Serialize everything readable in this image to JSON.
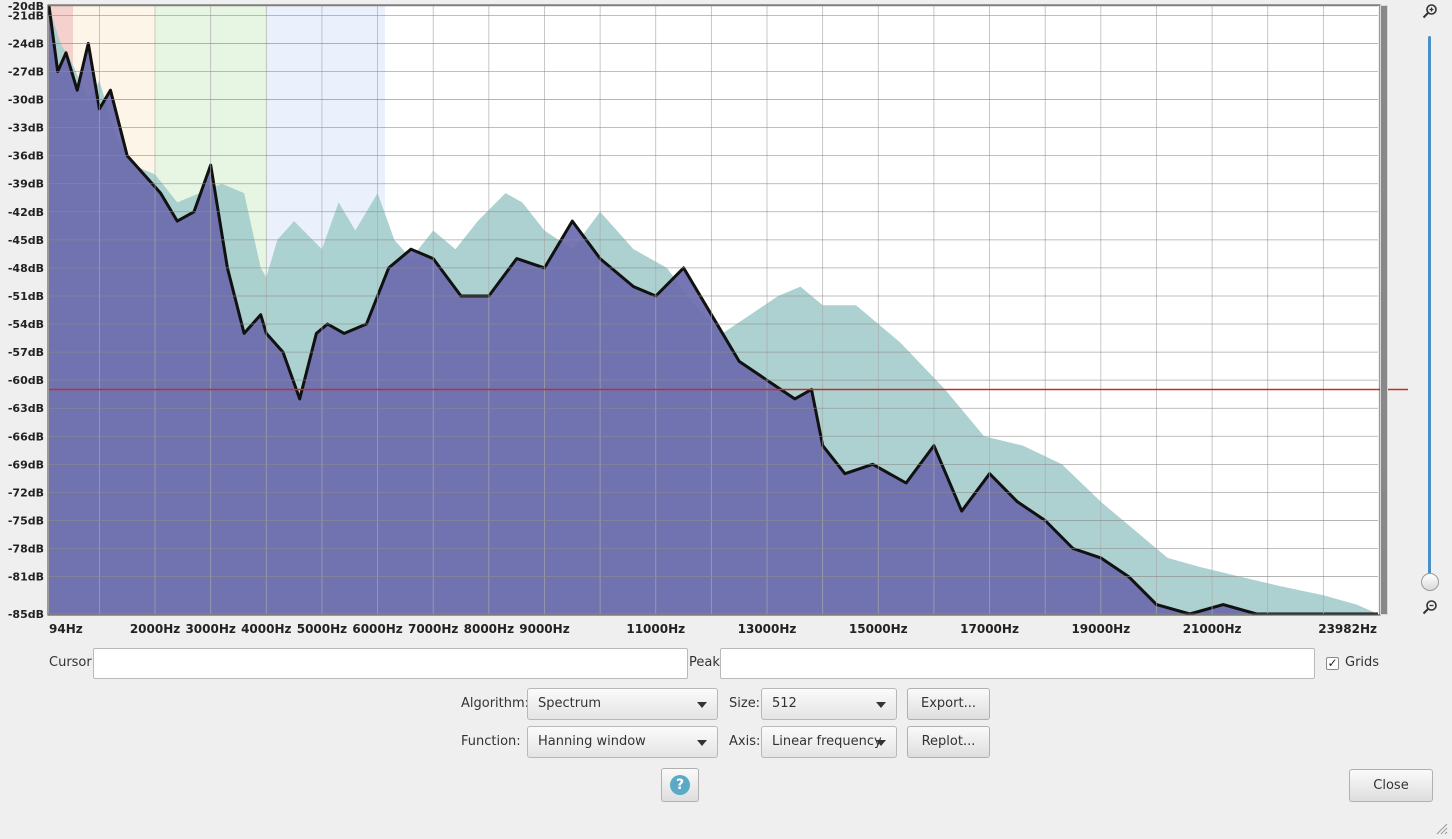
{
  "chart_data": {
    "type": "area",
    "title": "",
    "xlabel": "",
    "ylabel": "",
    "x_ticks": [
      "94Hz",
      "2000Hz",
      "3000Hz",
      "4000Hz",
      "5000Hz",
      "6000Hz",
      "7000Hz",
      "8000Hz",
      "9000Hz",
      "11000Hz",
      "13000Hz",
      "15000Hz",
      "17000Hz",
      "19000Hz",
      "21000Hz",
      "23982Hz"
    ],
    "x_tick_values": [
      94,
      2000,
      3000,
      4000,
      5000,
      6000,
      7000,
      8000,
      9000,
      11000,
      13000,
      15000,
      17000,
      19000,
      21000,
      23982
    ],
    "y_ticks": [
      "-20dB",
      "-21dB",
      "-24dB",
      "-27dB",
      "-30dB",
      "-33dB",
      "-36dB",
      "-39dB",
      "-42dB",
      "-45dB",
      "-48dB",
      "-51dB",
      "-54dB",
      "-57dB",
      "-60dB",
      "-63dB",
      "-66dB",
      "-69dB",
      "-72dB",
      "-75dB",
      "-78dB",
      "-81dB",
      "-85dB"
    ],
    "y_tick_values": [
      -20,
      -21,
      -24,
      -27,
      -30,
      -33,
      -36,
      -39,
      -42,
      -45,
      -48,
      -51,
      -54,
      -57,
      -60,
      -63,
      -66,
      -69,
      -72,
      -75,
      -78,
      -81,
      -85
    ],
    "xlim": [
      94,
      23982
    ],
    "ylim": [
      -85,
      -20
    ],
    "grid": true,
    "threshold_db": -61,
    "series": [
      {
        "color": "#a8cfcd",
        "x": [
          94,
          300,
          500,
          800,
          1000,
          1300,
          1600,
          2000,
          2400,
          2800,
          3200,
          3600,
          3900,
          4000,
          4200,
          4500,
          5000,
          5300,
          5600,
          6000,
          6300,
          6600,
          7000,
          7400,
          7800,
          8300,
          8600,
          9000,
          9500,
          10000,
          10600,
          11200,
          11700,
          12200,
          12700,
          13200,
          13600,
          14000,
          14600,
          15400,
          16200,
          16900,
          17600,
          18300,
          19000,
          19600,
          20200,
          20800,
          21500,
          22200,
          23000,
          23600,
          23982
        ],
        "y": [
          -20,
          -24,
          -26,
          -30,
          -28,
          -34,
          -37,
          -38,
          -41,
          -40,
          -39,
          -40,
          -48,
          -49,
          -45,
          -43,
          -46,
          -41,
          -44,
          -40,
          -45,
          -47,
          -44,
          -46,
          -43,
          -40,
          -41,
          -44,
          -46,
          -42,
          -46,
          -48,
          -52,
          -55,
          -53,
          -51,
          -50,
          -52,
          -52,
          -56,
          -61,
          -66,
          -67,
          -69,
          -73,
          -76,
          -79,
          -80,
          -81,
          -82,
          -83,
          -84,
          -85
        ]
      },
      {
        "color": "#6b6aae",
        "x": [
          94,
          250,
          400,
          600,
          800,
          1000,
          1200,
          1500,
          1800,
          2100,
          2400,
          2700,
          3000,
          3300,
          3600,
          3900,
          4000,
          4300,
          4600,
          4900,
          5100,
          5400,
          5800,
          6200,
          6600,
          7000,
          7500,
          8000,
          8500,
          9000,
          9500,
          10000,
          10600,
          11000,
          11500,
          12000,
          12500,
          13000,
          13500,
          13800,
          14000,
          14400,
          14900,
          15500,
          16000,
          16500,
          17000,
          17500,
          18000,
          18500,
          19000,
          19500,
          20000,
          20600,
          21200,
          21800,
          22500,
          23200,
          23982
        ],
        "y": [
          -20,
          -27,
          -25,
          -29,
          -24,
          -31,
          -29,
          -36,
          -38,
          -40,
          -43,
          -42,
          -37,
          -48,
          -55,
          -53,
          -55,
          -57,
          -62,
          -55,
          -54,
          -55,
          -54,
          -48,
          -46,
          -47,
          -51,
          -51,
          -47,
          -48,
          -43,
          -47,
          -50,
          -51,
          -48,
          -53,
          -58,
          -60,
          -62,
          -61,
          -67,
          -70,
          -69,
          -71,
          -67,
          -74,
          -70,
          -73,
          -75,
          -78,
          -79,
          -81,
          -84,
          -85,
          -84,
          -85,
          -85,
          -85,
          -85
        ]
      }
    ]
  },
  "controls": {
    "cursor_label": "Cursor:",
    "cursor_value": "",
    "peak_label": "Peak:",
    "peak_value": "",
    "grids_label": "Grids",
    "grids_checked": "✓",
    "algorithm_label": "Algorithm:",
    "algorithm_value": "Spectrum",
    "size_label": "Size:",
    "size_value": "512",
    "export_label": "Export...",
    "function_label": "Function:",
    "function_value": "Hanning window",
    "axis_label": "Axis:",
    "axis_value": "Linear frequency",
    "replot_label": "Replot...",
    "help_glyph": "?",
    "close_label": "Close"
  },
  "icons": {
    "zoom_in": "zoom-in-icon",
    "zoom_out": "zoom-out-icon",
    "help": "question-circle-icon",
    "resize": "resize-grip-icon"
  }
}
